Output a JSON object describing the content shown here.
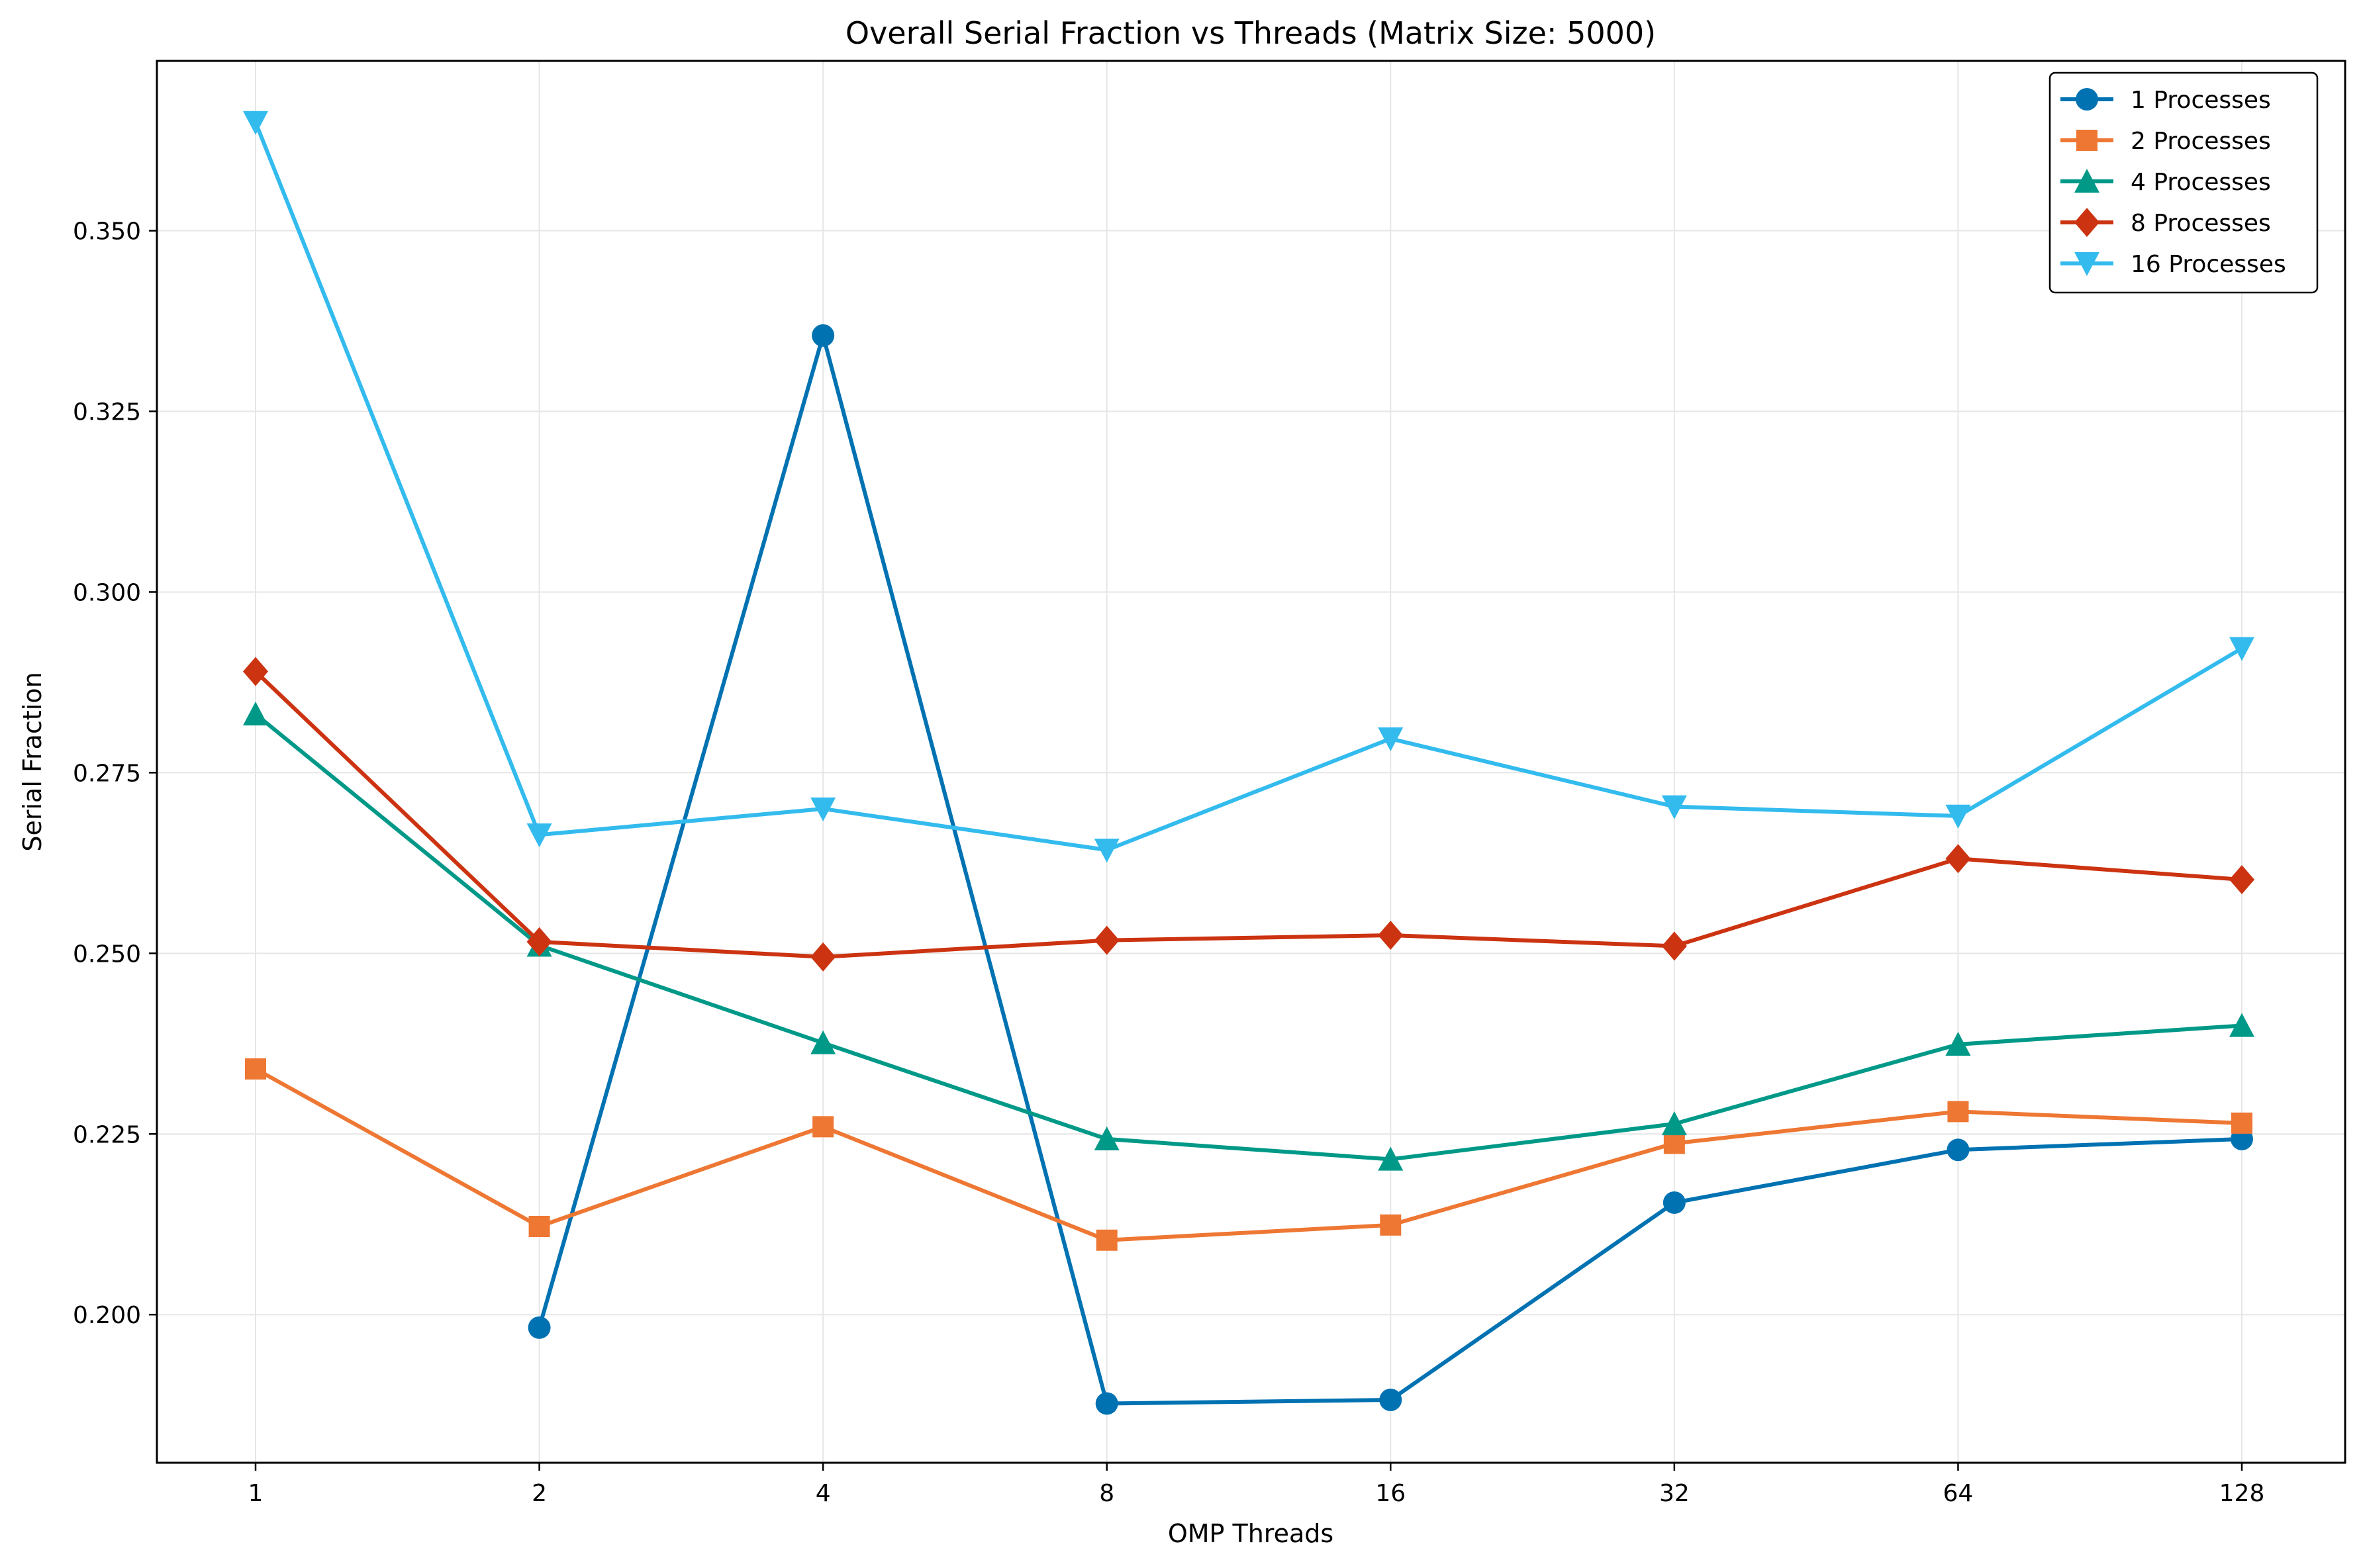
{
  "chart_data": {
    "type": "line",
    "title": "Overall Serial Fraction vs Threads (Matrix Size: 5000)",
    "xlabel": "OMP Threads",
    "ylabel": "Serial Fraction",
    "x": [
      "1",
      "2",
      "4",
      "8",
      "16",
      "32",
      "64",
      "128"
    ],
    "x_scale": "log2",
    "ylim": [
      0.1795,
      0.3735
    ],
    "yticks": [
      "0.200",
      "0.225",
      "0.250",
      "0.275",
      "0.300",
      "0.325",
      "0.350"
    ],
    "grid": true,
    "legend_position": "top-right",
    "series": [
      {
        "name": "1 Processes",
        "color": "#0072B2",
        "marker": "circle",
        "values": [
          null,
          0.1982,
          0.3355,
          0.1877,
          0.1882,
          0.2155,
          0.2228,
          0.2243
        ]
      },
      {
        "name": "2 Processes",
        "color": "#EE7733",
        "marker": "square",
        "values": [
          0.234,
          0.2122,
          0.226,
          0.2103,
          0.2124,
          0.2237,
          0.2281,
          0.2265
        ]
      },
      {
        "name": "4 Processes",
        "color": "#009988",
        "marker": "triangle-up",
        "values": [
          0.2831,
          0.2511,
          0.2376,
          0.2243,
          0.2215,
          0.2264,
          0.2374,
          0.24
        ]
      },
      {
        "name": "8 Processes",
        "color": "#CC3311",
        "marker": "diamond",
        "values": [
          0.289,
          0.2516,
          0.2495,
          0.2518,
          0.2525,
          0.251,
          0.2631,
          0.2602
        ]
      },
      {
        "name": "16 Processes",
        "color": "#33BBEE",
        "marker": "triangle-down",
        "values": [
          0.365,
          0.2664,
          0.27,
          0.2643,
          0.2797,
          0.2703,
          0.269,
          0.2922
        ]
      }
    ]
  }
}
